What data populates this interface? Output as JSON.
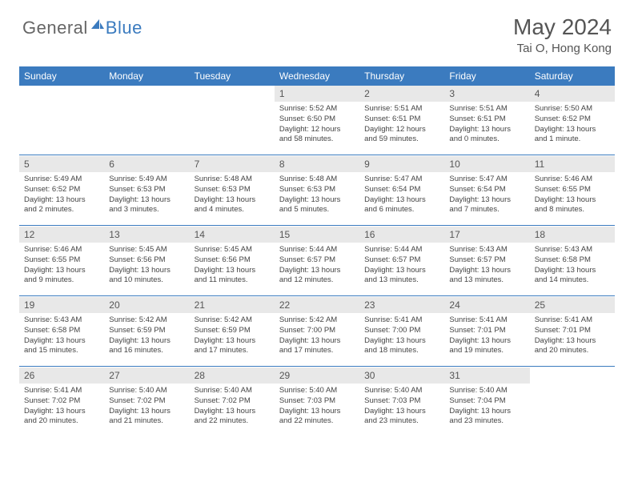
{
  "brand": {
    "part1": "General",
    "part2": "Blue"
  },
  "title": "May 2024",
  "location": "Tai O, Hong Kong",
  "colors": {
    "header_bg": "#3b7bbf",
    "header_text": "#ffffff",
    "daynum_bg": "#e8e8e8",
    "text": "#444444",
    "rule": "#3b7bbf"
  },
  "font": {
    "family": "Arial",
    "title_size": 28,
    "location_size": 15,
    "header_size": 12,
    "daynum_size": 12,
    "content_size": 9.5
  },
  "weekdays": [
    "Sunday",
    "Monday",
    "Tuesday",
    "Wednesday",
    "Thursday",
    "Friday",
    "Saturday"
  ],
  "weeks": [
    [
      null,
      null,
      null,
      {
        "n": "1",
        "sr": "Sunrise: 5:52 AM",
        "ss": "Sunset: 6:50 PM",
        "dl": "Daylight: 12 hours and 58 minutes."
      },
      {
        "n": "2",
        "sr": "Sunrise: 5:51 AM",
        "ss": "Sunset: 6:51 PM",
        "dl": "Daylight: 12 hours and 59 minutes."
      },
      {
        "n": "3",
        "sr": "Sunrise: 5:51 AM",
        "ss": "Sunset: 6:51 PM",
        "dl": "Daylight: 13 hours and 0 minutes."
      },
      {
        "n": "4",
        "sr": "Sunrise: 5:50 AM",
        "ss": "Sunset: 6:52 PM",
        "dl": "Daylight: 13 hours and 1 minute."
      }
    ],
    [
      {
        "n": "5",
        "sr": "Sunrise: 5:49 AM",
        "ss": "Sunset: 6:52 PM",
        "dl": "Daylight: 13 hours and 2 minutes."
      },
      {
        "n": "6",
        "sr": "Sunrise: 5:49 AM",
        "ss": "Sunset: 6:53 PM",
        "dl": "Daylight: 13 hours and 3 minutes."
      },
      {
        "n": "7",
        "sr": "Sunrise: 5:48 AM",
        "ss": "Sunset: 6:53 PM",
        "dl": "Daylight: 13 hours and 4 minutes."
      },
      {
        "n": "8",
        "sr": "Sunrise: 5:48 AM",
        "ss": "Sunset: 6:53 PM",
        "dl": "Daylight: 13 hours and 5 minutes."
      },
      {
        "n": "9",
        "sr": "Sunrise: 5:47 AM",
        "ss": "Sunset: 6:54 PM",
        "dl": "Daylight: 13 hours and 6 minutes."
      },
      {
        "n": "10",
        "sr": "Sunrise: 5:47 AM",
        "ss": "Sunset: 6:54 PM",
        "dl": "Daylight: 13 hours and 7 minutes."
      },
      {
        "n": "11",
        "sr": "Sunrise: 5:46 AM",
        "ss": "Sunset: 6:55 PM",
        "dl": "Daylight: 13 hours and 8 minutes."
      }
    ],
    [
      {
        "n": "12",
        "sr": "Sunrise: 5:46 AM",
        "ss": "Sunset: 6:55 PM",
        "dl": "Daylight: 13 hours and 9 minutes."
      },
      {
        "n": "13",
        "sr": "Sunrise: 5:45 AM",
        "ss": "Sunset: 6:56 PM",
        "dl": "Daylight: 13 hours and 10 minutes."
      },
      {
        "n": "14",
        "sr": "Sunrise: 5:45 AM",
        "ss": "Sunset: 6:56 PM",
        "dl": "Daylight: 13 hours and 11 minutes."
      },
      {
        "n": "15",
        "sr": "Sunrise: 5:44 AM",
        "ss": "Sunset: 6:57 PM",
        "dl": "Daylight: 13 hours and 12 minutes."
      },
      {
        "n": "16",
        "sr": "Sunrise: 5:44 AM",
        "ss": "Sunset: 6:57 PM",
        "dl": "Daylight: 13 hours and 13 minutes."
      },
      {
        "n": "17",
        "sr": "Sunrise: 5:43 AM",
        "ss": "Sunset: 6:57 PM",
        "dl": "Daylight: 13 hours and 13 minutes."
      },
      {
        "n": "18",
        "sr": "Sunrise: 5:43 AM",
        "ss": "Sunset: 6:58 PM",
        "dl": "Daylight: 13 hours and 14 minutes."
      }
    ],
    [
      {
        "n": "19",
        "sr": "Sunrise: 5:43 AM",
        "ss": "Sunset: 6:58 PM",
        "dl": "Daylight: 13 hours and 15 minutes."
      },
      {
        "n": "20",
        "sr": "Sunrise: 5:42 AM",
        "ss": "Sunset: 6:59 PM",
        "dl": "Daylight: 13 hours and 16 minutes."
      },
      {
        "n": "21",
        "sr": "Sunrise: 5:42 AM",
        "ss": "Sunset: 6:59 PM",
        "dl": "Daylight: 13 hours and 17 minutes."
      },
      {
        "n": "22",
        "sr": "Sunrise: 5:42 AM",
        "ss": "Sunset: 7:00 PM",
        "dl": "Daylight: 13 hours and 17 minutes."
      },
      {
        "n": "23",
        "sr": "Sunrise: 5:41 AM",
        "ss": "Sunset: 7:00 PM",
        "dl": "Daylight: 13 hours and 18 minutes."
      },
      {
        "n": "24",
        "sr": "Sunrise: 5:41 AM",
        "ss": "Sunset: 7:01 PM",
        "dl": "Daylight: 13 hours and 19 minutes."
      },
      {
        "n": "25",
        "sr": "Sunrise: 5:41 AM",
        "ss": "Sunset: 7:01 PM",
        "dl": "Daylight: 13 hours and 20 minutes."
      }
    ],
    [
      {
        "n": "26",
        "sr": "Sunrise: 5:41 AM",
        "ss": "Sunset: 7:02 PM",
        "dl": "Daylight: 13 hours and 20 minutes."
      },
      {
        "n": "27",
        "sr": "Sunrise: 5:40 AM",
        "ss": "Sunset: 7:02 PM",
        "dl": "Daylight: 13 hours and 21 minutes."
      },
      {
        "n": "28",
        "sr": "Sunrise: 5:40 AM",
        "ss": "Sunset: 7:02 PM",
        "dl": "Daylight: 13 hours and 22 minutes."
      },
      {
        "n": "29",
        "sr": "Sunrise: 5:40 AM",
        "ss": "Sunset: 7:03 PM",
        "dl": "Daylight: 13 hours and 22 minutes."
      },
      {
        "n": "30",
        "sr": "Sunrise: 5:40 AM",
        "ss": "Sunset: 7:03 PM",
        "dl": "Daylight: 13 hours and 23 minutes."
      },
      {
        "n": "31",
        "sr": "Sunrise: 5:40 AM",
        "ss": "Sunset: 7:04 PM",
        "dl": "Daylight: 13 hours and 23 minutes."
      },
      null
    ]
  ]
}
